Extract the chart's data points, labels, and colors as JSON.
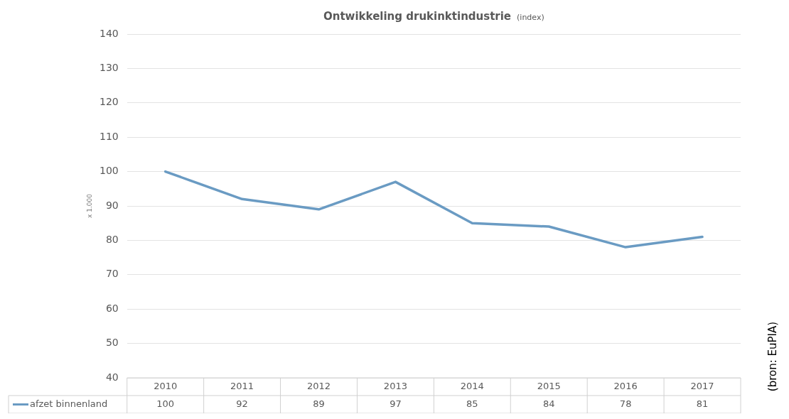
{
  "chart_data": {
    "type": "line",
    "title": "Ontwikkeling drukinktindustrie",
    "subtitle": "(index)",
    "ylabel": "x 1.000",
    "annotations": [
      "(bron: EuPIA)"
    ],
    "categories": [
      "2010",
      "2011",
      "2012",
      "2013",
      "2014",
      "2015",
      "2016",
      "2017"
    ],
    "series": [
      {
        "name": "afzet binnenland",
        "color": "#6a9bc3",
        "values": [
          100,
          92,
          89,
          97,
          85,
          84,
          78,
          81
        ]
      }
    ],
    "ylim": [
      40,
      140
    ],
    "yticks": [
      40,
      50,
      60,
      70,
      80,
      90,
      100,
      110,
      120,
      130,
      140
    ],
    "grid": "y",
    "legend": "bottom",
    "data_labels": true,
    "marker": "none",
    "line_style": "solid"
  }
}
